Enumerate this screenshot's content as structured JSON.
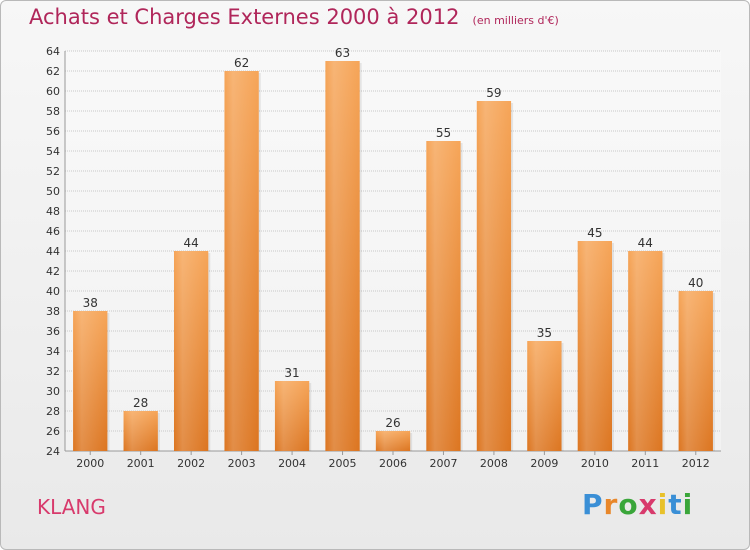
{
  "chart_data": {
    "type": "bar",
    "title": "Achats et Charges Externes 2000 à 2012",
    "unit_note": "(en milliers d'€)",
    "categories": [
      "2000",
      "2001",
      "2002",
      "2003",
      "2004",
      "2005",
      "2006",
      "2007",
      "2008",
      "2009",
      "2010",
      "2011",
      "2012"
    ],
    "values": [
      38,
      28,
      44,
      62,
      31,
      63,
      26,
      55,
      59,
      35,
      45,
      44,
      40
    ],
    "ylim": [
      24,
      64
    ],
    "ytick_step": 2,
    "grid": true,
    "bar_color": "#f0943e"
  },
  "footer": {
    "commune": "KLANG",
    "logo_letters": [
      "P",
      "r",
      "o",
      "x",
      "i",
      "t",
      "i"
    ],
    "logo_colors": [
      "#3a8fd6",
      "#e8872a",
      "#3aa63a",
      "#d83a6c",
      "#e8c12a",
      "#3a8fd6",
      "#3aa63a"
    ]
  }
}
